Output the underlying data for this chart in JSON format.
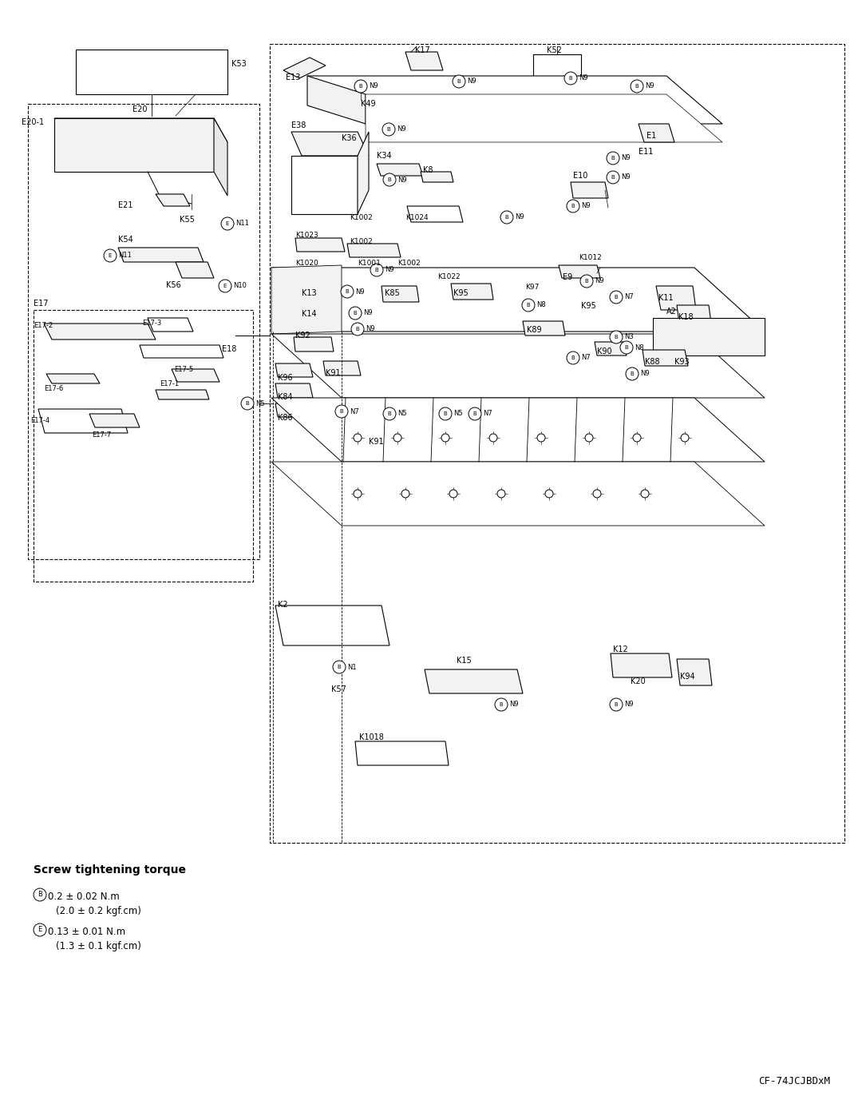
{
  "background_color": "#ffffff",
  "page_width": 10.8,
  "page_height": 13.97,
  "dpi": 100,
  "torque_title": "Screw tightening torque",
  "torque_B_sym": "Ⓑ",
  "torque_B_line1": "0.2 ± 0.02 N.m",
  "torque_B_line2": "(2.0 ± 0.2 kgf.cm)",
  "torque_E_sym": "Ⓔ",
  "torque_E_line1": "0.13 ± 0.01 N.m",
  "torque_E_line2": "(1.3 ± 0.1 kgf.cm)",
  "model_text": "CF-74JCJBDxM",
  "line_color": "#000000",
  "gray_fill": "#f2f2f2",
  "white_fill": "#ffffff"
}
